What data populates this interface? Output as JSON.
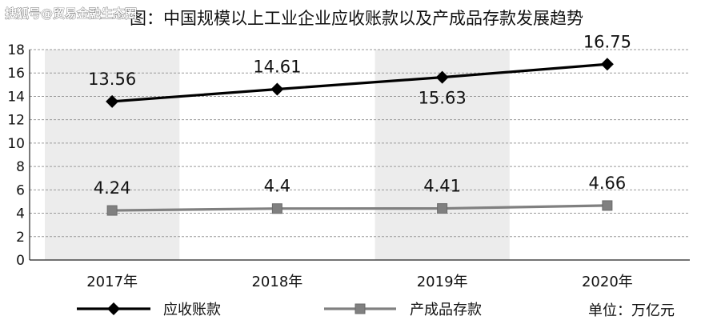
{
  "watermark": "搜狐号@贸易金融生态圈",
  "chart_data": {
    "type": "line",
    "title": "图：中国规模以上工业企业应收账款以及产成品存款发展趋势",
    "categories": [
      "2017年",
      "2018年",
      "2019年",
      "2020年"
    ],
    "series": [
      {
        "name": "应收账款",
        "values": [
          13.56,
          14.61,
          15.63,
          16.75
        ],
        "labels": [
          "13.56",
          "14.61",
          "15.63",
          "16.75"
        ],
        "color": "#000000",
        "marker": "diamond"
      },
      {
        "name": "产成品存款",
        "values": [
          4.24,
          4.4,
          4.41,
          4.66
        ],
        "labels": [
          "4.24",
          "4.4",
          "4.41",
          "4.66"
        ],
        "color": "#808080",
        "marker": "square"
      }
    ],
    "ylim": [
      0,
      18
    ],
    "yticks": [
      "0",
      "2",
      "4",
      "6",
      "8",
      "10",
      "12",
      "14",
      "16",
      "18"
    ],
    "grid": true,
    "alternating_bands": true,
    "legend_position": "bottom",
    "unit_note": "单位：万亿元"
  }
}
